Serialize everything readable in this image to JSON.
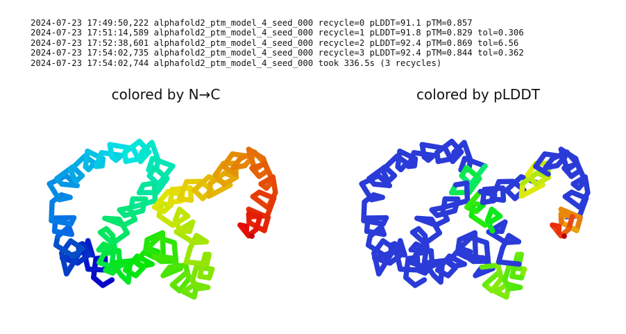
{
  "log_lines": [
    "2024-07-23 17:49:50,222 alphafold2_ptm_model_4_seed_000 recycle=0 pLDDT=91.1 pTM=0.857",
    "2024-07-23 17:51:14,589 alphafold2_ptm_model_4_seed_000 recycle=1 pLDDT=91.8 pTM=0.829 tol=0.306",
    "2024-07-23 17:52:38,601 alphafold2_ptm_model_4_seed_000 recycle=2 pLDDT=92.4 pTM=0.869 tol=6.56",
    "2024-07-23 17:54:02,735 alphafold2_ptm_model_4_seed_000 recycle=3 pLDDT=92.4 pTM=0.844 tol=0.362",
    "2024-07-23 17:54:02,744 alphafold2_ptm_model_4_seed_000 took 336.5s (3 recycles)"
  ],
  "panels": {
    "left": {
      "title": "colored by N→C"
    },
    "right": {
      "title": "colored by pLDDT"
    }
  },
  "colors": {
    "background": "#ffffff",
    "text": "#111111",
    "plddt_high": "#2a3bd8",
    "plddt_mid": "#00c8c8",
    "plddt_low": "#e01010"
  }
}
